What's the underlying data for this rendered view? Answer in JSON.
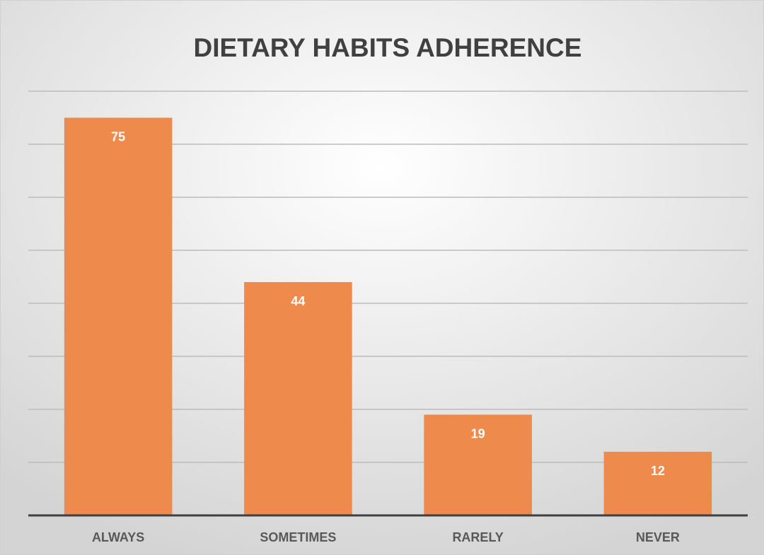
{
  "chart_data": {
    "type": "bar",
    "title": "DIETARY HABITS ADHERENCE",
    "categories": [
      "ALWAYS",
      "SOMETIMES",
      "RARELY",
      "NEVER"
    ],
    "values": [
      75,
      44,
      19,
      12
    ],
    "color": "#ed8a4c",
    "ylim": [
      0,
      80
    ],
    "yticks": [
      0,
      10,
      20,
      30,
      40,
      50,
      60,
      70,
      80
    ],
    "grid": true
  }
}
